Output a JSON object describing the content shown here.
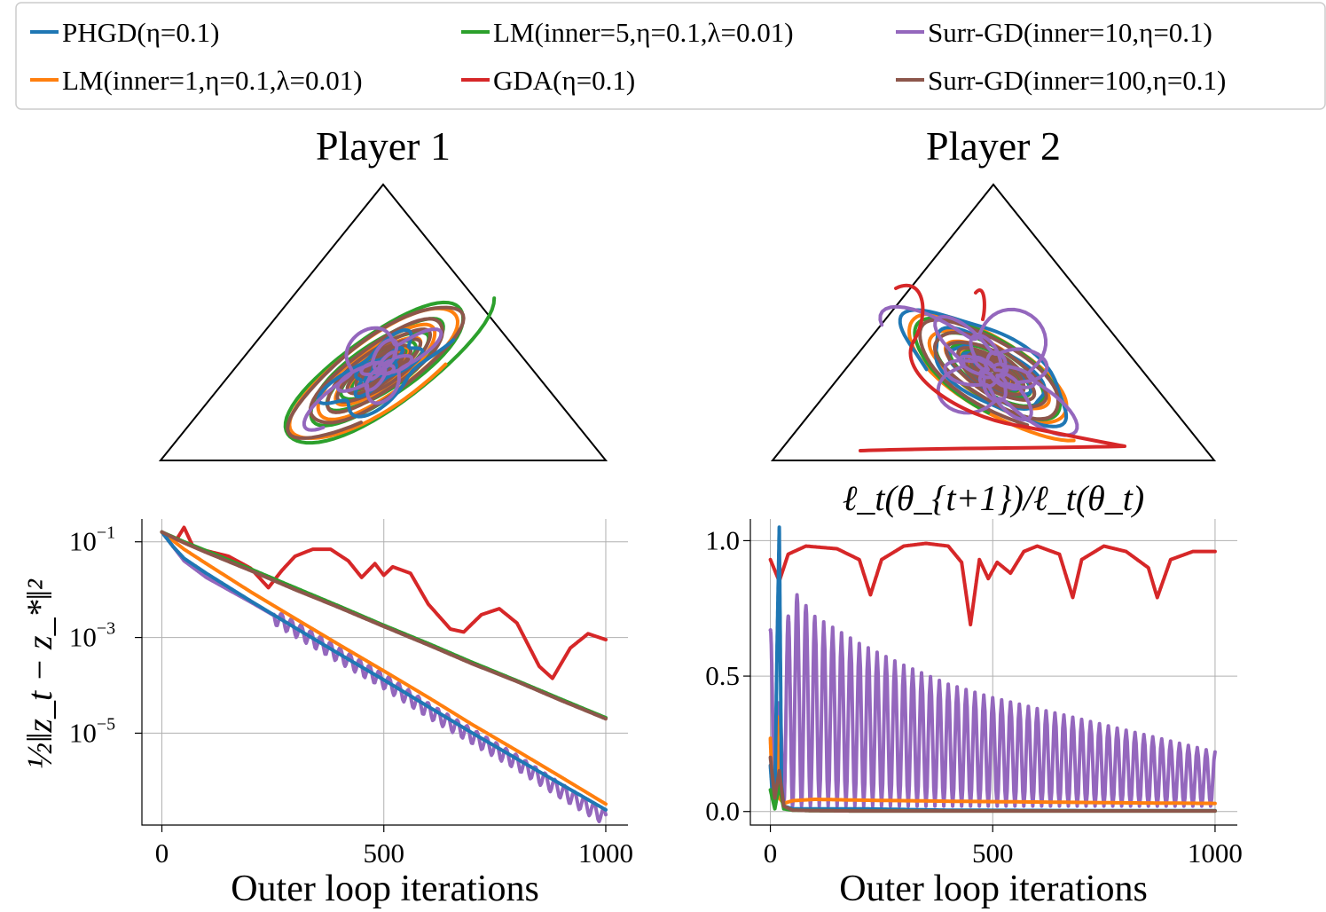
{
  "legend": {
    "entries": [
      {
        "key": "phgd",
        "label": "PHGD(η=0.1)",
        "color": "#1f77b4"
      },
      {
        "key": "lm1",
        "label": "LM(inner=1,η=0.1,λ=0.01)",
        "color": "#ff7f0e"
      },
      {
        "key": "lm5",
        "label": "LM(inner=5,η=0.1,λ=0.01)",
        "color": "#2ca02c"
      },
      {
        "key": "gda",
        "label": "GDA(η=0.1)",
        "color": "#d62728"
      },
      {
        "key": "surr10",
        "label": "Surr-GD(inner=10,η=0.1)",
        "color": "#9467bd"
      },
      {
        "key": "surr100",
        "label": "Surr-GD(inner=100,η=0.1)",
        "color": "#8c564b"
      }
    ]
  },
  "chart_data": [
    {
      "type": "simplex-trajectory",
      "title": "Player 1",
      "center": [
        0.33,
        0.33,
        0.34
      ]
    },
    {
      "type": "simplex-trajectory",
      "title": "Player 2",
      "center": [
        0.33,
        0.33,
        0.34
      ]
    },
    {
      "type": "line",
      "title": "",
      "xlabel": "Outer loop iterations",
      "ylabel": "½‖z_t − z_*‖²",
      "yscale": "log",
      "xlim": [
        -45,
        1050
      ],
      "ylim": [
        1.2e-07,
        0.3
      ],
      "xticks": [
        0,
        500,
        1000
      ],
      "yticks": [
        {
          "base": "10",
          "exp": "−1",
          "value": 0.1
        },
        {
          "base": "10",
          "exp": "−3",
          "value": 0.001
        },
        {
          "base": "10",
          "exp": "−5",
          "value": 1e-05
        }
      ],
      "series": [
        {
          "name": "PHGD(η=0.1)",
          "key": "phgd",
          "x": [
            0,
            25,
            50,
            100,
            200,
            300,
            400,
            500,
            600,
            700,
            800,
            900,
            1000
          ],
          "y": [
            0.16,
            0.08,
            0.045,
            0.022,
            0.0058,
            0.0016,
            0.00045,
            0.00013,
            3.6e-05,
            1e-05,
            2.9e-06,
            8.5e-07,
            2.5e-07
          ]
        },
        {
          "name": "LM(inner=1,η=0.1,λ=0.01)",
          "key": "lm1",
          "x": [
            0,
            50,
            100,
            200,
            300,
            400,
            500,
            600,
            700,
            800,
            900,
            1000
          ],
          "y": [
            0.16,
            0.07,
            0.035,
            0.009,
            0.0025,
            0.0007,
            0.0002,
            5.6e-05,
            1.5e-05,
            4.3e-06,
            1.2e-06,
            3.3e-07
          ]
        },
        {
          "name": "LM(inner=5,η=0.1,λ=0.01)",
          "key": "lm5",
          "x": [
            0,
            50,
            100,
            200,
            300,
            400,
            500,
            600,
            700,
            800,
            900,
            1000
          ],
          "y": [
            0.16,
            0.1,
            0.065,
            0.027,
            0.011,
            0.0045,
            0.0018,
            0.00075,
            0.0003,
            0.000125,
            5.1e-05,
            2.1e-05
          ]
        },
        {
          "name": "GDA(η=0.1)",
          "key": "gda",
          "x": [
            0,
            30,
            50,
            70,
            100,
            150,
            200,
            240,
            270,
            300,
            340,
            380,
            420,
            450,
            480,
            500,
            520,
            560,
            600,
            650,
            680,
            720,
            760,
            800,
            850,
            880,
            920,
            960,
            1000
          ],
          "y": [
            0.16,
            0.1,
            0.2,
            0.08,
            0.065,
            0.05,
            0.028,
            0.011,
            0.025,
            0.05,
            0.07,
            0.07,
            0.04,
            0.018,
            0.035,
            0.02,
            0.03,
            0.022,
            0.005,
            0.0015,
            0.0013,
            0.003,
            0.004,
            0.002,
            0.00025,
            0.00014,
            0.0006,
            0.0012,
            0.0009
          ]
        },
        {
          "name": "Surr-GD(inner=10,η=0.1)",
          "key": "surr10",
          "x": [
            0,
            50,
            100,
            200,
            300,
            400,
            500,
            600,
            700,
            800,
            900,
            1000
          ],
          "y": [
            0.16,
            0.04,
            0.018,
            0.0055,
            0.0016,
            0.00045,
            0.00013,
            3.2e-05,
            9e-06,
            2.6e-06,
            6.5e-07,
            1.8e-07
          ]
        },
        {
          "name": "Surr-GD(inner=100,η=0.1)",
          "key": "surr100",
          "x": [
            0,
            50,
            100,
            200,
            300,
            400,
            500,
            600,
            700,
            800,
            900,
            1000
          ],
          "y": [
            0.16,
            0.095,
            0.06,
            0.025,
            0.01,
            0.0042,
            0.0017,
            0.0007,
            0.00028,
            0.00012,
            4.8e-05,
            2e-05
          ]
        }
      ]
    },
    {
      "type": "line",
      "title": "ℓ_t(θ_{t+1})/ℓ_t(θ_t)",
      "xlabel": "Outer loop iterations",
      "ylabel": "",
      "yscale": "linear",
      "xlim": [
        -45,
        1050
      ],
      "ylim": [
        -0.05,
        1.08
      ],
      "xticks": [
        0,
        500,
        1000
      ],
      "yticks": [
        {
          "label": "0.0",
          "value": 0
        },
        {
          "label": "0.5",
          "value": 0.5
        },
        {
          "label": "1.0",
          "value": 1.0
        }
      ],
      "series": [
        {
          "name": "PHGD(η=0.1)",
          "key": "phgd",
          "x": [
            0,
            5,
            10,
            15,
            20,
            25,
            30,
            50,
            100,
            200,
            400,
            600,
            800,
            1000
          ],
          "y": [
            0.17,
            0.05,
            0.02,
            0.6,
            1.05,
            0.1,
            0.02,
            0.01,
            0.01,
            0.01,
            0.005,
            0.004,
            0.003,
            0.003
          ]
        },
        {
          "name": "LM(inner=1,η=0.1,λ=0.01)",
          "key": "lm1",
          "x": [
            0,
            5,
            10,
            15,
            20,
            30,
            50,
            100,
            200,
            400,
            600,
            800,
            1000
          ],
          "y": [
            0.27,
            0.05,
            0.02,
            0.35,
            0.05,
            0.03,
            0.04,
            0.045,
            0.042,
            0.038,
            0.035,
            0.032,
            0.03
          ]
        },
        {
          "name": "LM(inner=5,η=0.1,λ=0.01)",
          "key": "lm5",
          "x": [
            0,
            10,
            20,
            30,
            50,
            100,
            200,
            400,
            600,
            800,
            1000
          ],
          "y": [
            0.08,
            0.01,
            0.1,
            0.01,
            0.005,
            0.003,
            0.002,
            0.002,
            0.002,
            0.002,
            0.002
          ]
        },
        {
          "name": "GDA(η=0.1)",
          "key": "gda",
          "x": [
            0,
            20,
            40,
            80,
            150,
            200,
            225,
            250,
            300,
            350,
            400,
            430,
            450,
            470,
            490,
            510,
            540,
            570,
            600,
            650,
            680,
            700,
            750,
            800,
            850,
            870,
            900,
            950,
            1000
          ],
          "y": [
            0.93,
            0.85,
            0.95,
            0.98,
            0.97,
            0.93,
            0.8,
            0.93,
            0.98,
            0.99,
            0.98,
            0.92,
            0.69,
            0.93,
            0.86,
            0.92,
            0.88,
            0.96,
            0.98,
            0.95,
            0.79,
            0.93,
            0.98,
            0.96,
            0.9,
            0.79,
            0.93,
            0.96,
            0.96
          ]
        },
        {
          "name": "Surr-GD(inner=10,η=0.1)",
          "key": "surr10",
          "x": [
            0,
            10,
            20,
            30,
            40,
            50,
            100,
            200,
            300,
            400,
            500,
            600,
            700,
            800,
            900,
            1000
          ],
          "y": [
            0.65,
            0.7,
            0.35,
            0.6,
            0.7,
            0.8,
            0.7,
            0.6,
            0.52,
            0.45,
            0.4,
            0.36,
            0.32,
            0.28,
            0.24,
            0.2
          ],
          "oscillating": true
        },
        {
          "name": "Surr-GD(inner=100,η=0.1)",
          "key": "surr100",
          "x": [
            0,
            10,
            20,
            30,
            50,
            100,
            200,
            400,
            600,
            800,
            1000
          ],
          "y": [
            0.2,
            0.05,
            0.15,
            0.02,
            0.005,
            0.003,
            0.002,
            0.002,
            0.002,
            0.002,
            0.002
          ]
        }
      ]
    }
  ]
}
